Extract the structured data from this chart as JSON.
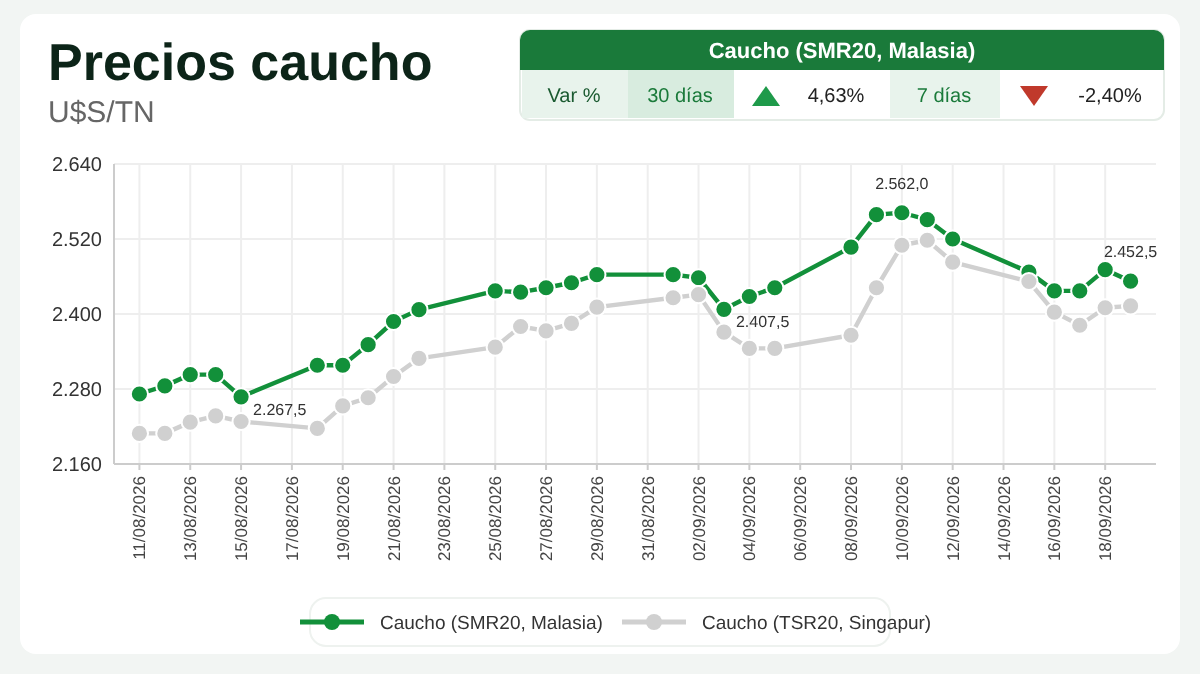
{
  "chart_data": {
    "type": "line",
    "title": "Precios caucho",
    "subtitle": "U$S/TN",
    "annotations": [
      "Caucho (SMR20, Malasia)",
      "Var %",
      "30 días",
      "4,63%",
      "7 días",
      "-2,40%"
    ],
    "x": [
      "2026-08-11",
      "2026-08-12",
      "2026-08-13",
      "2026-08-14",
      "2026-08-15",
      "2026-08-18",
      "2026-08-19",
      "2026-08-20",
      "2026-08-21",
      "2026-08-22",
      "2026-08-25",
      "2026-08-26",
      "2026-08-27",
      "2026-08-28",
      "2026-08-29",
      "2026-09-01",
      "2026-09-02",
      "2026-09-03",
      "2026-09-04",
      "2026-09-05",
      "2026-09-08",
      "2026-09-09",
      "2026-09-10",
      "2026-09-11",
      "2026-09-12",
      "2026-09-15",
      "2026-09-16",
      "2026-09-17",
      "2026-09-18",
      "2026-09-19"
    ],
    "series": [
      {
        "name": "Caucho (SMR20, Malasia)",
        "color": "#12903a",
        "values": [
          2272,
          2285,
          2303,
          2303,
          2267.5,
          2318,
          2318,
          2351,
          2388,
          2407,
          2437,
          2435,
          2442,
          2450,
          2463,
          2463,
          2458,
          2407.5,
          2428,
          2442,
          2507,
          2559,
          2562,
          2551,
          2520,
          2467,
          2437,
          2437,
          2471,
          2452.5
        ],
        "value_labels": [
          null,
          null,
          null,
          null,
          "2.267,5",
          null,
          null,
          null,
          null,
          null,
          null,
          null,
          null,
          null,
          null,
          null,
          null,
          "2.407,5",
          null,
          null,
          null,
          null,
          "2.562,0",
          null,
          null,
          null,
          null,
          null,
          null,
          "2.452,5"
        ]
      },
      {
        "name": "Caucho (TSR20, Singapur)",
        "color": "#d0d0d0",
        "values": [
          2209,
          2209,
          2227,
          2237,
          2228,
          2217,
          2253,
          2266,
          2300,
          2329,
          2347,
          2380,
          2373,
          2385,
          2411,
          2426,
          2431,
          2371,
          2345,
          2345,
          2366,
          2442,
          2510,
          2518,
          2483,
          2452,
          2403,
          2382,
          2410,
          2413
        ]
      }
    ],
    "xlim": [
      "2026-08-10",
      "2026-09-20"
    ],
    "xticks": [
      {
        "value": "2026-08-11",
        "label": "11/08/2026"
      },
      {
        "value": "2026-08-13",
        "label": "13/08/2026"
      },
      {
        "value": "2026-08-15",
        "label": "15/08/2026"
      },
      {
        "value": "2026-08-17",
        "label": "17/08/2026"
      },
      {
        "value": "2026-08-19",
        "label": "19/08/2026"
      },
      {
        "value": "2026-08-21",
        "label": "21/08/2026"
      },
      {
        "value": "2026-08-23",
        "label": "23/08/2026"
      },
      {
        "value": "2026-08-25",
        "label": "25/08/2026"
      },
      {
        "value": "2026-08-27",
        "label": "27/08/2026"
      },
      {
        "value": "2026-08-29",
        "label": "29/08/2026"
      },
      {
        "value": "2026-08-31",
        "label": "31/08/2026"
      },
      {
        "value": "2026-09-02",
        "label": "02/09/2026"
      },
      {
        "value": "2026-09-04",
        "label": "04/09/2026"
      },
      {
        "value": "2026-09-06",
        "label": "06/09/2026"
      },
      {
        "value": "2026-09-08",
        "label": "08/09/2026"
      },
      {
        "value": "2026-09-10",
        "label": "10/09/2026"
      },
      {
        "value": "2026-09-12",
        "label": "12/09/2026"
      },
      {
        "value": "2026-09-14",
        "label": "14/09/2026"
      },
      {
        "value": "2026-09-16",
        "label": "16/09/2026"
      },
      {
        "value": "2026-09-18",
        "label": "18/09/2026"
      }
    ],
    "ylim": [
      2160,
      2640
    ],
    "yticks": [
      {
        "value": 2160,
        "label": "2.160"
      },
      {
        "value": 2280,
        "label": "2.280"
      },
      {
        "value": 2400,
        "label": "2.400"
      },
      {
        "value": 2520,
        "label": "2.520"
      },
      {
        "value": 2640,
        "label": "2.640"
      }
    ],
    "grid": true,
    "legend": "bottom",
    "marker": "circle",
    "line_style": "solid"
  }
}
